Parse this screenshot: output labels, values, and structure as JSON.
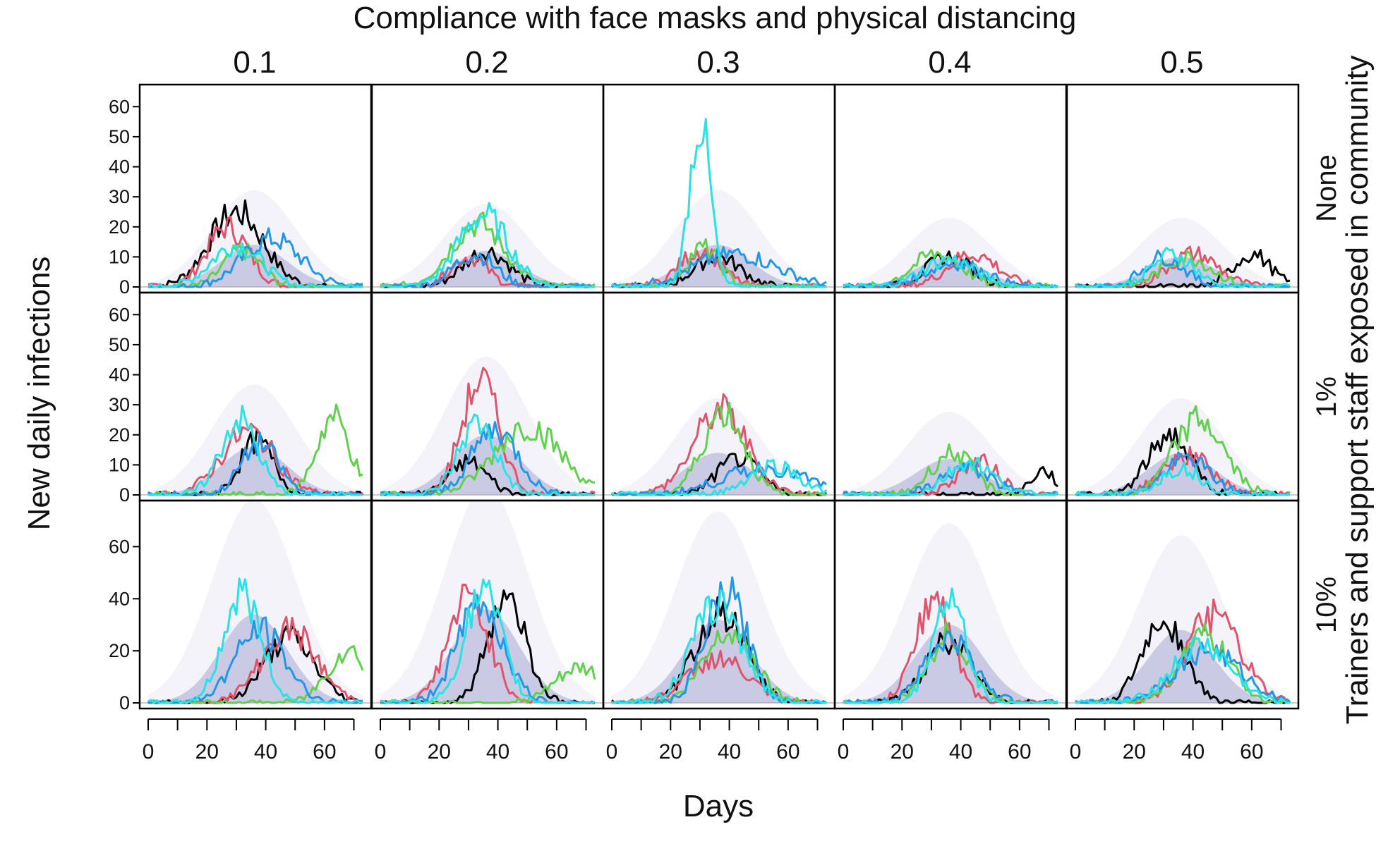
{
  "chart_data": {
    "type": "line",
    "title": "Compliance with face masks and physical distancing",
    "xlabel": "Days",
    "ylabel": "New daily infections",
    "right_label": "Trainers and support staff exposed in community",
    "column_labels": [
      "0.1",
      "0.2",
      "0.3",
      "0.4",
      "0.5"
    ],
    "row_labels": [
      "None",
      "1%",
      "10%"
    ],
    "x_ticks": [
      0,
      20,
      40,
      60
    ],
    "xlim": [
      0,
      73
    ],
    "row_ylims": [
      [
        0,
        65
      ],
      [
        0,
        65
      ],
      [
        0,
        75
      ]
    ],
    "row_y_ticks": [
      [
        0,
        10,
        20,
        30,
        40,
        50,
        60
      ],
      [
        0,
        10,
        20,
        30,
        40,
        50,
        60
      ],
      [
        0,
        20,
        40,
        60
      ]
    ],
    "background_band_color": "#9999cc",
    "series_colors": [
      "#000000",
      "#df536b",
      "#61d04f",
      "#2297e6",
      "#28e2e5"
    ],
    "panels": [
      {
        "row": "None",
        "col": "0.1",
        "band_peak": 14,
        "series": [
          {
            "peak_day": 30,
            "peak": 25,
            "width": 13
          },
          {
            "peak_day": 27,
            "peak": 20,
            "width": 10
          },
          {
            "peak_day": 32,
            "peak": 12,
            "width": 9
          },
          {
            "peak_day": 42,
            "peak": 16,
            "width": 14
          },
          {
            "peak_day": 30,
            "peak": 14,
            "width": 12
          }
        ]
      },
      {
        "row": "None",
        "col": "0.2",
        "band_peak": 12,
        "series": [
          {
            "peak_day": 36,
            "peak": 12,
            "width": 11
          },
          {
            "peak_day": 30,
            "peak": 10,
            "width": 9
          },
          {
            "peak_day": 33,
            "peak": 21,
            "width": 13
          },
          {
            "peak_day": 32,
            "peak": 11,
            "width": 10
          },
          {
            "peak_day": 35,
            "peak": 24,
            "width": 12
          }
        ]
      },
      {
        "row": "None",
        "col": "0.3",
        "band_peak": 14,
        "series": [
          {
            "peak_day": 36,
            "peak": 10,
            "width": 11
          },
          {
            "peak_day": 30,
            "peak": 12,
            "width": 10
          },
          {
            "peak_day": 31,
            "peak": 13,
            "width": 8
          },
          {
            "peak_day": 42,
            "peak": 11,
            "width": 20
          },
          {
            "peak_day": 30,
            "peak": 55,
            "width": 5
          }
        ]
      },
      {
        "row": "None",
        "col": "0.4",
        "band_peak": 10,
        "series": [
          {
            "peak_day": 36,
            "peak": 10,
            "width": 11
          },
          {
            "peak_day": 44,
            "peak": 11,
            "width": 12
          },
          {
            "peak_day": 32,
            "peak": 11,
            "width": 12
          },
          {
            "peak_day": 38,
            "peak": 8,
            "width": 14
          },
          {
            "peak_day": 36,
            "peak": 9,
            "width": 13
          }
        ]
      },
      {
        "row": "None",
        "col": "0.5",
        "band_peak": 10,
        "series": [
          {
            "peak_day": 60,
            "peak": 11,
            "width": 9
          },
          {
            "peak_day": 40,
            "peak": 11,
            "width": 12
          },
          {
            "peak_day": 38,
            "peak": 10,
            "width": 12
          },
          {
            "peak_day": 30,
            "peak": 10,
            "width": 10
          },
          {
            "peak_day": 33,
            "peak": 11,
            "width": 10
          }
        ]
      },
      {
        "row": "1%",
        "col": "0.1",
        "band_peak": 16,
        "series": [
          {
            "peak_day": 37,
            "peak": 18,
            "width": 8
          },
          {
            "peak_day": 34,
            "peak": 21,
            "width": 13
          },
          {
            "peak_day": 63,
            "peak": 26,
            "width": 8
          },
          {
            "peak_day": 38,
            "peak": 17,
            "width": 9
          },
          {
            "peak_day": 31,
            "peak": 25,
            "width": 9
          }
        ]
      },
      {
        "row": "1%",
        "col": "0.2",
        "band_peak": 20,
        "series": [
          {
            "peak_day": 30,
            "peak": 11,
            "width": 9
          },
          {
            "peak_day": 34,
            "peak": 38,
            "width": 9
          },
          {
            "peak_day": 50,
            "peak": 23,
            "width": 16
          },
          {
            "peak_day": 39,
            "peak": 22,
            "width": 11
          },
          {
            "peak_day": 33,
            "peak": 24,
            "width": 9
          }
        ]
      },
      {
        "row": "1%",
        "col": "0.3",
        "band_peak": 14,
        "series": [
          {
            "peak_day": 43,
            "peak": 12,
            "width": 10
          },
          {
            "peak_day": 37,
            "peak": 28,
            "width": 13
          },
          {
            "peak_day": 38,
            "peak": 28,
            "width": 10
          },
          {
            "peak_day": 52,
            "peak": 9,
            "width": 20
          },
          {
            "peak_day": 55,
            "peak": 10,
            "width": 12
          }
        ]
      },
      {
        "row": "1%",
        "col": "0.4",
        "band_peak": 12,
        "series": [
          {
            "peak_day": 68,
            "peak": 8,
            "width": 6
          },
          {
            "peak_day": 46,
            "peak": 11,
            "width": 10
          },
          {
            "peak_day": 37,
            "peak": 14,
            "width": 10
          },
          {
            "peak_day": 42,
            "peak": 9,
            "width": 12
          },
          {
            "peak_day": 43,
            "peak": 11,
            "width": 11
          }
        ]
      },
      {
        "row": "1%",
        "col": "0.5",
        "band_peak": 14,
        "series": [
          {
            "peak_day": 32,
            "peak": 20,
            "width": 10
          },
          {
            "peak_day": 38,
            "peak": 13,
            "width": 12
          },
          {
            "peak_day": 42,
            "peak": 25,
            "width": 12
          },
          {
            "peak_day": 38,
            "peak": 12,
            "width": 11
          },
          {
            "peak_day": 36,
            "peak": 9,
            "width": 10
          }
        ]
      },
      {
        "row": "10%",
        "col": "0.1",
        "band_peak": 34,
        "series": [
          {
            "peak_day": 48,
            "peak": 25,
            "width": 12
          },
          {
            "peak_day": 48,
            "peak": 28,
            "width": 13
          },
          {
            "peak_day": 68,
            "peak": 20,
            "width": 10
          },
          {
            "peak_day": 38,
            "peak": 28,
            "width": 12
          },
          {
            "peak_day": 32,
            "peak": 42,
            "width": 9
          }
        ]
      },
      {
        "row": "10%",
        "col": "0.2",
        "band_peak": 36,
        "series": [
          {
            "peak_day": 43,
            "peak": 42,
            "width": 9
          },
          {
            "peak_day": 30,
            "peak": 40,
            "width": 10
          },
          {
            "peak_day": 68,
            "peak": 13,
            "width": 12
          },
          {
            "peak_day": 34,
            "peak": 38,
            "width": 11
          },
          {
            "peak_day": 35,
            "peak": 42,
            "width": 9
          }
        ]
      },
      {
        "row": "10%",
        "col": "0.3",
        "band_peak": 32,
        "series": [
          {
            "peak_day": 37,
            "peak": 35,
            "width": 12
          },
          {
            "peak_day": 36,
            "peak": 17,
            "width": 14
          },
          {
            "peak_day": 40,
            "peak": 28,
            "width": 12
          },
          {
            "peak_day": 39,
            "peak": 42,
            "width": 10
          },
          {
            "peak_day": 36,
            "peak": 38,
            "width": 12
          }
        ]
      },
      {
        "row": "10%",
        "col": "0.4",
        "band_peak": 30,
        "series": [
          {
            "peak_day": 36,
            "peak": 24,
            "width": 11
          },
          {
            "peak_day": 31,
            "peak": 40,
            "width": 9
          },
          {
            "peak_day": 36,
            "peak": 26,
            "width": 10
          },
          {
            "peak_day": 36,
            "peak": 24,
            "width": 12
          },
          {
            "peak_day": 36,
            "peak": 40,
            "width": 8
          }
        ]
      },
      {
        "row": "10%",
        "col": "0.5",
        "band_peak": 28,
        "series": [
          {
            "peak_day": 30,
            "peak": 32,
            "width": 10
          },
          {
            "peak_day": 47,
            "peak": 33,
            "width": 13
          },
          {
            "peak_day": 44,
            "peak": 25,
            "width": 12
          },
          {
            "peak_day": 45,
            "peak": 20,
            "width": 16
          },
          {
            "peak_day": 43,
            "peak": 22,
            "width": 14
          }
        ]
      }
    ]
  }
}
